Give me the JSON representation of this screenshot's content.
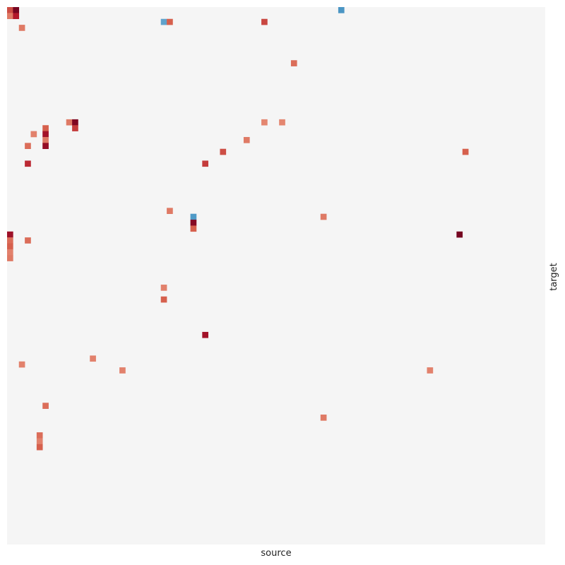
{
  "chart_data": {
    "type": "heatmap",
    "title": "",
    "xlabel": "source",
    "ylabel": "target",
    "grid": false,
    "tick_labels": false,
    "colorbar": false,
    "n_rows": 91,
    "n_cols": 91,
    "background_value": 0,
    "value_range": [
      -1,
      1
    ],
    "colors": {
      "background": "#f5f5f5",
      "scale": [
        {
          "v": -1.0,
          "c": "#2166ac"
        },
        {
          "v": -0.5,
          "c": "#4f9ac7"
        },
        {
          "v": 0.0,
          "c": "#f5f5f5"
        },
        {
          "v": 0.35,
          "c": "#e8937c"
        },
        {
          "v": 0.55,
          "c": "#d6604d"
        },
        {
          "v": 0.75,
          "c": "#b2182b"
        },
        {
          "v": 1.0,
          "c": "#67001f"
        }
      ]
    },
    "cells": [
      {
        "row": 0,
        "col": 56,
        "value": -0.55
      },
      {
        "row": 0,
        "col": 0,
        "value": 0.6
      },
      {
        "row": 0,
        "col": 1,
        "value": 0.95
      },
      {
        "row": 1,
        "col": 0,
        "value": 0.45
      },
      {
        "row": 1,
        "col": 1,
        "value": 0.75
      },
      {
        "row": 2,
        "col": 26,
        "value": -0.45
      },
      {
        "row": 2,
        "col": 27,
        "value": 0.55
      },
      {
        "row": 2,
        "col": 43,
        "value": 0.62
      },
      {
        "row": 3,
        "col": 2,
        "value": 0.45
      },
      {
        "row": 9,
        "col": 48,
        "value": 0.5
      },
      {
        "row": 19,
        "col": 10,
        "value": 0.45
      },
      {
        "row": 19,
        "col": 11,
        "value": 0.92
      },
      {
        "row": 19,
        "col": 43,
        "value": 0.4
      },
      {
        "row": 19,
        "col": 46,
        "value": 0.4
      },
      {
        "row": 20,
        "col": 11,
        "value": 0.65
      },
      {
        "row": 20,
        "col": 6,
        "value": 0.55
      },
      {
        "row": 21,
        "col": 4,
        "value": 0.42
      },
      {
        "row": 21,
        "col": 6,
        "value": 0.8
      },
      {
        "row": 22,
        "col": 6,
        "value": 0.45
      },
      {
        "row": 22,
        "col": 40,
        "value": 0.45
      },
      {
        "row": 23,
        "col": 3,
        "value": 0.5
      },
      {
        "row": 23,
        "col": 6,
        "value": 0.85
      },
      {
        "row": 24,
        "col": 36,
        "value": 0.6
      },
      {
        "row": 24,
        "col": 77,
        "value": 0.55
      },
      {
        "row": 26,
        "col": 3,
        "value": 0.7
      },
      {
        "row": 26,
        "col": 33,
        "value": 0.65
      },
      {
        "row": 34,
        "col": 27,
        "value": 0.45
      },
      {
        "row": 35,
        "col": 31,
        "value": -0.5
      },
      {
        "row": 35,
        "col": 53,
        "value": 0.45
      },
      {
        "row": 36,
        "col": 31,
        "value": 0.9
      },
      {
        "row": 37,
        "col": 31,
        "value": 0.55
      },
      {
        "row": 38,
        "col": 0,
        "value": 0.82
      },
      {
        "row": 38,
        "col": 76,
        "value": 0.95
      },
      {
        "row": 39,
        "col": 0,
        "value": 0.5
      },
      {
        "row": 39,
        "col": 3,
        "value": 0.5
      },
      {
        "row": 40,
        "col": 0,
        "value": 0.55
      },
      {
        "row": 41,
        "col": 0,
        "value": 0.42
      },
      {
        "row": 42,
        "col": 0,
        "value": 0.45
      },
      {
        "row": 47,
        "col": 26,
        "value": 0.42
      },
      {
        "row": 49,
        "col": 26,
        "value": 0.55
      },
      {
        "row": 55,
        "col": 33,
        "value": 0.8
      },
      {
        "row": 59,
        "col": 14,
        "value": 0.42
      },
      {
        "row": 60,
        "col": 2,
        "value": 0.42
      },
      {
        "row": 61,
        "col": 19,
        "value": 0.42
      },
      {
        "row": 61,
        "col": 71,
        "value": 0.42
      },
      {
        "row": 67,
        "col": 6,
        "value": 0.5
      },
      {
        "row": 69,
        "col": 53,
        "value": 0.45
      },
      {
        "row": 72,
        "col": 5,
        "value": 0.5
      },
      {
        "row": 73,
        "col": 5,
        "value": 0.42
      },
      {
        "row": 74,
        "col": 5,
        "value": 0.55
      }
    ]
  }
}
